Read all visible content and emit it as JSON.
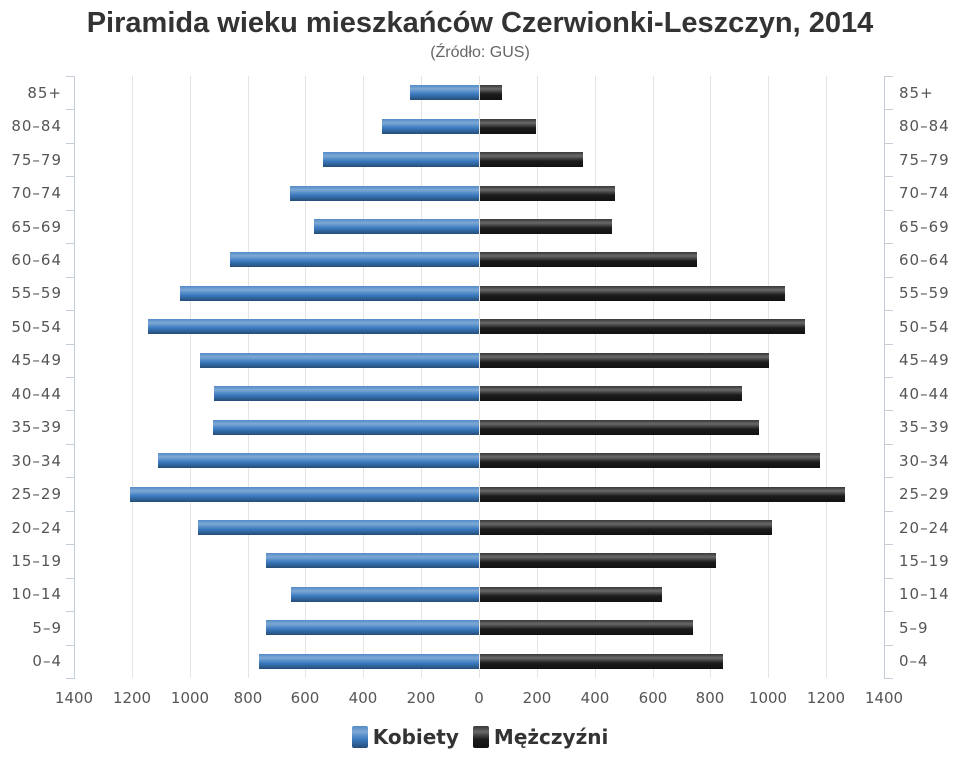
{
  "chart_data": {
    "type": "bar",
    "orientation": "horizontal",
    "title": "Piramida wieku mieszkańców Czerwionki-Leszczyn, 2014",
    "subtitle": "(Źródło: GUS)",
    "categories": [
      "85+",
      "80–84",
      "75–79",
      "70–74",
      "65–69",
      "60–64",
      "55–59",
      "50–54",
      "45–49",
      "40–44",
      "35–39",
      "30–34",
      "25–29",
      "20–24",
      "15–19",
      "10–14",
      "5–9",
      "0–4"
    ],
    "series": [
      {
        "name": "Kobiety",
        "side": "left",
        "color": "#3b7bc0",
        "values": [
          240,
          335,
          540,
          655,
          570,
          860,
          1035,
          1145,
          965,
          915,
          920,
          1110,
          1205,
          970,
          735,
          650,
          735,
          760
        ]
      },
      {
        "name": "Mężczyźni",
        "side": "right",
        "color": "#1c1c1c",
        "values": [
          75,
          195,
          355,
          465,
          455,
          750,
          1055,
          1125,
          1000,
          905,
          965,
          1175,
          1260,
          1010,
          815,
          630,
          735,
          840
        ]
      }
    ],
    "xlim": [
      0,
      1400
    ],
    "x_ticks": [
      1400,
      1200,
      1000,
      800,
      600,
      400,
      200,
      0,
      200,
      400,
      600,
      800,
      1000,
      1200,
      1400
    ],
    "grid": true,
    "legend": "bottom"
  }
}
